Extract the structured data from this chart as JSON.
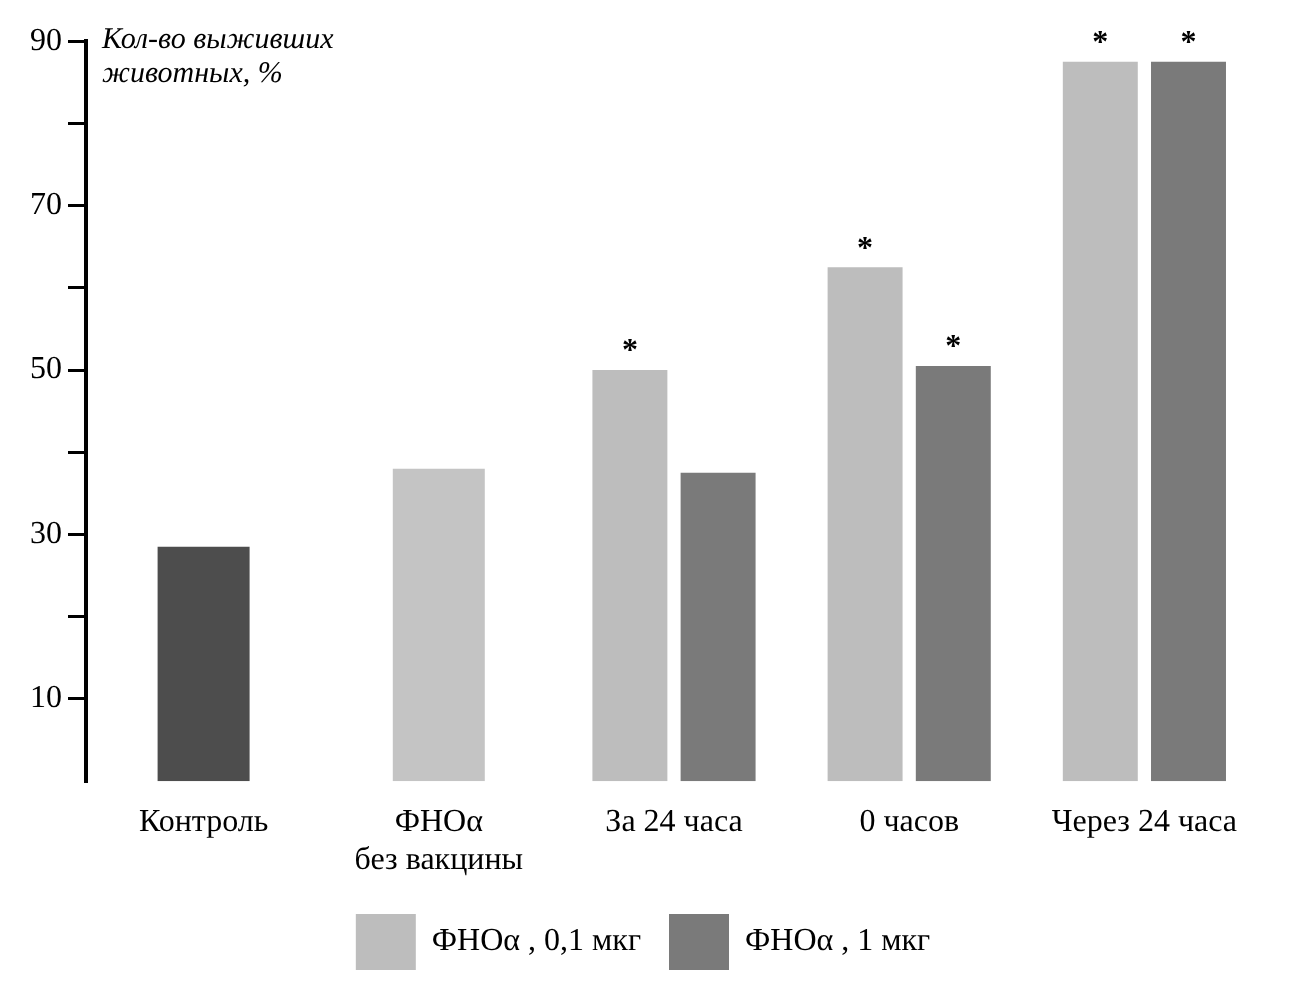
{
  "chart_data": {
    "type": "bar",
    "ylabel": "Кол-во выживших животных, %",
    "categories": [
      "Контроль",
      "ФНОα\nбез вакцины",
      "За 24 часа",
      "0 часов",
      "Через 24 часа"
    ],
    "series": [
      {
        "color": "#4d4d4d",
        "colors": [
          "#4d4d4d",
          "#c4c4c4",
          null,
          null,
          null
        ],
        "values": [
          28.5,
          38,
          null,
          null,
          null
        ]
      },
      {
        "name": "ФНОα , 0,1 мкг",
        "color": "#bdbdbd",
        "values": [
          null,
          null,
          50,
          62.5,
          87.5
        ]
      },
      {
        "name": "ФНОα , 1 мкг",
        "color": "#7a7a7a",
        "values": [
          null,
          null,
          37.5,
          50.5,
          87.5
        ]
      }
    ],
    "ylim": [
      0,
      90
    ],
    "yticks": [
      10,
      {
        "value": 20,
        "label": null
      },
      30,
      {
        "value": 40,
        "label": null
      },
      50,
      {
        "value": 60,
        "label": null
      },
      70,
      {
        "value": 80,
        "label": null
      },
      90
    ],
    "annotations": [
      {
        "text": "*",
        "x": "За 24 часа",
        "y": 50
      },
      {
        "text": "*",
        "x": "0 часов",
        "y": 62.5
      },
      {
        "text": "*",
        "x": "0 часов",
        "y": 50.5
      },
      {
        "text": "*",
        "x": "Через 24 часа",
        "y": 87.5
      },
      {
        "text": "*",
        "x": "Через 24 часа",
        "y": 87.5
      }
    ],
    "grid": false,
    "legend": "bottom"
  }
}
